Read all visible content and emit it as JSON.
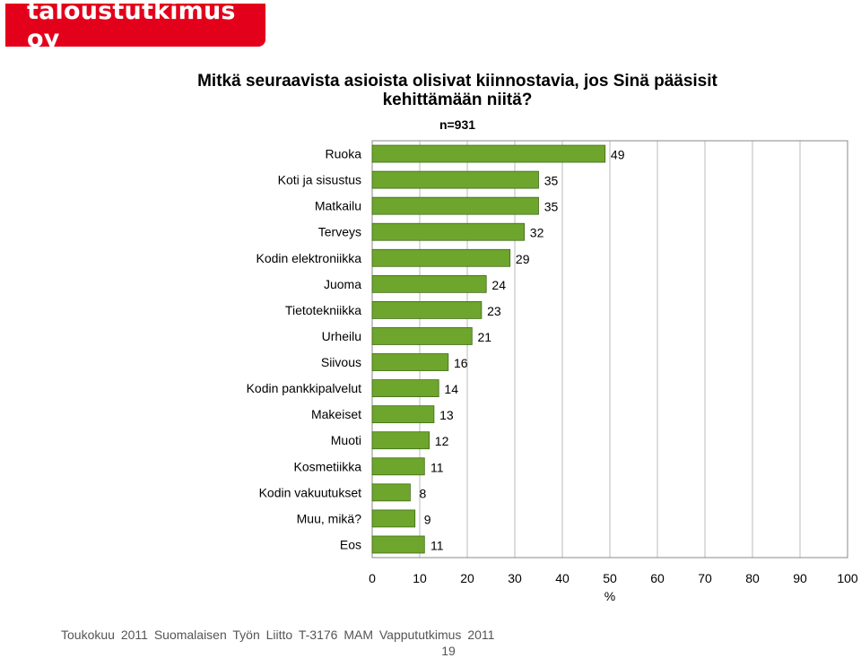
{
  "brand": {
    "name": "taloustutkimus oy",
    "color": "#e3001b"
  },
  "colors": {
    "bar": "#6ea52d",
    "bar_edge": "#3f6b16",
    "grid": "#bbbbbb"
  },
  "chart_data": {
    "type": "bar",
    "orientation": "horizontal",
    "title": "Mitkä seuraavista asioista olisivat kiinnostavia, jos Sinä pääsisit kehittämään niitä?",
    "subtitle": "n=931",
    "categories": [
      "Ruoka",
      "Koti ja sisustus",
      "Matkailu",
      "Terveys",
      "Kodin elektroniikka",
      "Juoma",
      "Tietotekniikka",
      "Urheilu",
      "Siivous",
      "Kodin pankkipalvelut",
      "Makeiset",
      "Muoti",
      "Kosmetiikka",
      "Kodin vakuutukset",
      "Muu, mikä?",
      "Eos"
    ],
    "values": [
      49,
      35,
      35,
      32,
      29,
      24,
      23,
      21,
      16,
      14,
      13,
      12,
      11,
      8,
      9,
      11
    ],
    "xlabel": "%",
    "xlim": [
      0,
      100
    ],
    "xticks": [
      0,
      10,
      20,
      30,
      40,
      50,
      60,
      70,
      80,
      90,
      100
    ],
    "grid": true,
    "data_labels": true
  },
  "footer": {
    "text": "Toukokuu 2011 Suomalaisen Työn Liitto T-3176 MAM Vappututkimus 2011",
    "page": "19"
  }
}
